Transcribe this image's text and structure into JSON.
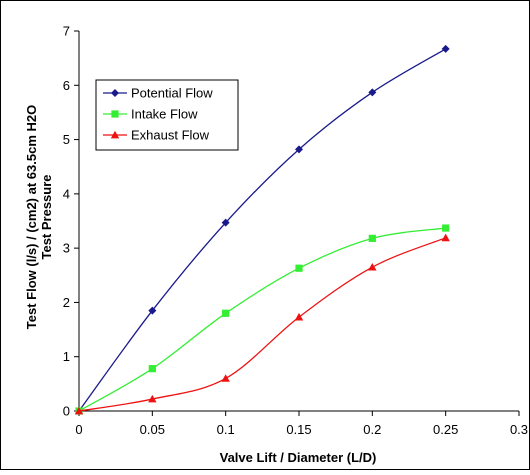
{
  "chart_data": {
    "type": "line",
    "title": "",
    "xlabel": "Valve Lift / Diameter (L/D)",
    "ylabel_lines": [
      "Test Flow (l/s) / (cm2) at 63.5cm H2O",
      "Test Pressure"
    ],
    "xlim": [
      0,
      0.3
    ],
    "ylim": [
      0,
      7
    ],
    "x_ticks": [
      "0",
      "0.05",
      "0.1",
      "0.15",
      "0.2",
      "0.25",
      "0.3"
    ],
    "y_ticks": [
      "0",
      "1",
      "2",
      "3",
      "4",
      "5",
      "6",
      "7"
    ],
    "grid": false,
    "legend_position": "upper-left",
    "series": [
      {
        "name": "Potential Flow",
        "color": "#1a1a8c",
        "marker": "diamond",
        "x": [
          0,
          0.05,
          0.1,
          0.15,
          0.2,
          0.25
        ],
        "y": [
          0,
          1.85,
          3.47,
          4.82,
          5.87,
          6.67
        ]
      },
      {
        "name": "Intake Flow",
        "color": "#33ee33",
        "marker": "square",
        "x": [
          0,
          0.05,
          0.1,
          0.15,
          0.2,
          0.25
        ],
        "y": [
          0,
          0.78,
          1.8,
          2.63,
          3.18,
          3.37
        ]
      },
      {
        "name": "Exhaust Flow",
        "color": "#ee1111",
        "marker": "triangle",
        "x": [
          0,
          0.05,
          0.1,
          0.15,
          0.2,
          0.25
        ],
        "y": [
          0,
          0.22,
          0.6,
          1.73,
          2.65,
          3.19
        ]
      }
    ]
  }
}
